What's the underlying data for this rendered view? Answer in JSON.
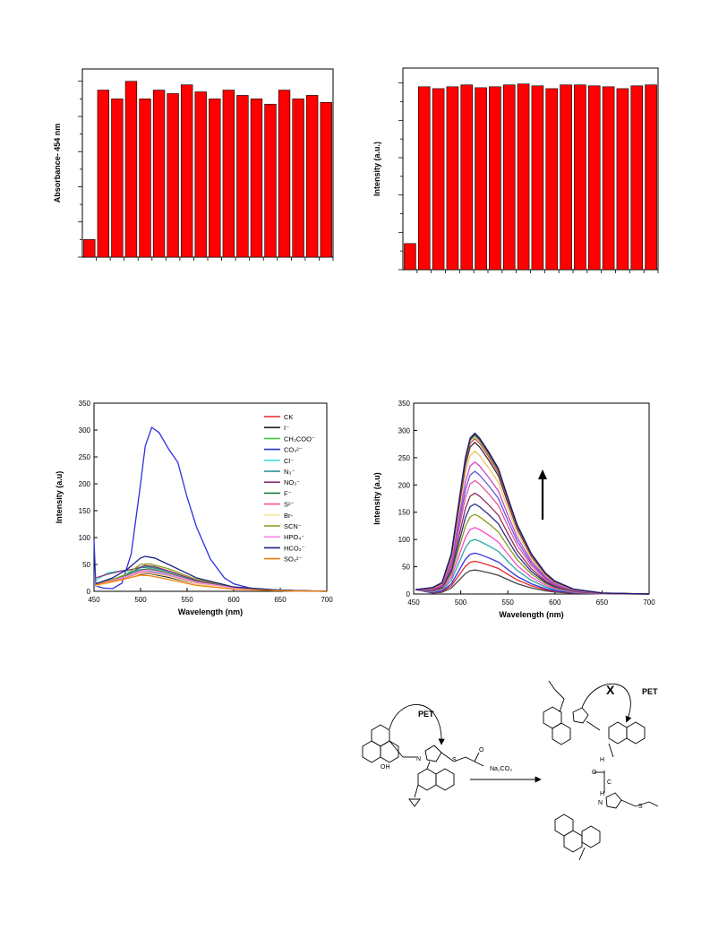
{
  "chart_data": [
    {
      "type": "bar",
      "title": "",
      "ylabel": "Absorbance- 454 nm",
      "xlabel": "",
      "ylim": [
        0,
        1.07
      ],
      "color": "#ff0000",
      "values": [
        0.1,
        0.95,
        0.9,
        1.0,
        0.9,
        0.95,
        0.93,
        0.98,
        0.94,
        0.9,
        0.95,
        0.92,
        0.9,
        0.87,
        0.95,
        0.9,
        0.92,
        0.88
      ]
    },
    {
      "type": "bar",
      "title": "",
      "ylabel": "Intensity (a.u.)",
      "xlabel": "",
      "ylim": [
        0,
        1.08
      ],
      "color": "#ff0000",
      "values": [
        0.14,
        0.98,
        0.97,
        0.98,
        0.99,
        0.975,
        0.98,
        0.99,
        0.995,
        0.985,
        0.97,
        0.99,
        0.99,
        0.985,
        0.98,
        0.97,
        0.985,
        0.99
      ]
    },
    {
      "type": "line",
      "title": "",
      "xlabel": "Wavelength (nm)",
      "ylabel": "Intensity (a.u)",
      "xlim": [
        450,
        700
      ],
      "ylim": [
        0,
        350
      ],
      "xticks": [
        "450",
        "500",
        "550",
        "600",
        "650",
        "700"
      ],
      "yticks": [
        "0",
        "50",
        "100",
        "150",
        "200",
        "250",
        "300",
        "350"
      ],
      "legend_position": "top-right",
      "series": [
        {
          "name": "CK",
          "color": "#e8262a",
          "x": [
            452,
            470,
            485,
            500,
            510,
            530,
            560,
            600,
            650,
            700
          ],
          "y": [
            12,
            20,
            28,
            38,
            40,
            32,
            18,
            6,
            2,
            0
          ]
        },
        {
          "name": "I⁻",
          "color": "#222222",
          "x": [
            452,
            470,
            485,
            500,
            510,
            530,
            560,
            600,
            650,
            700
          ],
          "y": [
            10,
            18,
            24,
            32,
            33,
            26,
            14,
            5,
            1,
            0
          ]
        },
        {
          "name": "CH₃COO⁻",
          "color": "#3cd03c",
          "x": [
            452,
            470,
            485,
            500,
            510,
            530,
            560,
            600,
            650,
            700
          ],
          "y": [
            15,
            22,
            30,
            45,
            46,
            38,
            20,
            7,
            2,
            0
          ]
        },
        {
          "name": "CO₃²⁻",
          "color": "#2f2fe0",
          "x": [
            450,
            452,
            460,
            470,
            480,
            490,
            500,
            505,
            512,
            520,
            530,
            540,
            550,
            560,
            575,
            590,
            600,
            620,
            650,
            700
          ],
          "y": [
            95,
            10,
            6,
            5,
            15,
            70,
            200,
            270,
            305,
            295,
            265,
            240,
            175,
            120,
            60,
            25,
            14,
            5,
            1,
            0
          ]
        },
        {
          "name": "Cl⁻",
          "color": "#40e0e0",
          "x": [
            452,
            465,
            480,
            490,
            500,
            510,
            530,
            560,
            600,
            650,
            700
          ],
          "y": [
            20,
            35,
            38,
            36,
            40,
            38,
            30,
            16,
            6,
            1,
            0
          ]
        },
        {
          "name": "N₃⁻",
          "color": "#1f8b8b",
          "x": [
            452,
            470,
            485,
            500,
            510,
            530,
            560,
            600,
            650,
            700
          ],
          "y": [
            14,
            20,
            30,
            44,
            45,
            37,
            20,
            7,
            2,
            0
          ]
        },
        {
          "name": "NO₃⁻",
          "color": "#8b2f7a",
          "x": [
            452,
            465,
            480,
            495,
            505,
            515,
            530,
            560,
            600,
            650,
            700
          ],
          "y": [
            25,
            32,
            38,
            42,
            48,
            46,
            38,
            20,
            7,
            2,
            0
          ]
        },
        {
          "name": "F⁻",
          "color": "#1e7b3a",
          "x": [
            452,
            470,
            485,
            500,
            510,
            530,
            560,
            600,
            650,
            700
          ],
          "y": [
            12,
            20,
            28,
            40,
            42,
            34,
            18,
            6,
            2,
            0
          ]
        },
        {
          "name": "S²⁻",
          "color": "#ff4da6",
          "x": [
            452,
            470,
            485,
            500,
            510,
            530,
            560,
            600,
            650,
            700
          ],
          "y": [
            11,
            18,
            25,
            35,
            36,
            29,
            15,
            5,
            1,
            0
          ]
        },
        {
          "name": "Br-",
          "color": "#f5e6a0",
          "x": [
            452,
            470,
            485,
            500,
            510,
            530,
            560,
            600,
            650,
            700
          ],
          "y": [
            10,
            17,
            24,
            33,
            34,
            28,
            14,
            5,
            1,
            0
          ]
        },
        {
          "name": "SCN⁻",
          "color": "#8a9a1a",
          "x": [
            452,
            470,
            485,
            500,
            510,
            530,
            560,
            600,
            650,
            700
          ],
          "y": [
            14,
            22,
            32,
            50,
            51,
            42,
            22,
            8,
            2,
            0
          ]
        },
        {
          "name": "HPO₄⁻",
          "color": "#ff88e8",
          "x": [
            452,
            470,
            485,
            500,
            510,
            530,
            560,
            600,
            650,
            700
          ],
          "y": [
            13,
            20,
            28,
            38,
            40,
            32,
            17,
            6,
            2,
            0
          ]
        },
        {
          "name": "HCO₃⁻",
          "color": "#1a237e",
          "x": [
            452,
            470,
            485,
            500,
            505,
            515,
            530,
            560,
            600,
            650,
            700
          ],
          "y": [
            14,
            25,
            40,
            62,
            65,
            62,
            50,
            25,
            8,
            2,
            0
          ]
        },
        {
          "name": "SO₄²⁻",
          "color": "#f08000",
          "x": [
            452,
            470,
            485,
            500,
            510,
            530,
            560,
            600,
            650,
            700
          ],
          "y": [
            12,
            18,
            24,
            30,
            29,
            22,
            11,
            4,
            1,
            0
          ]
        }
      ]
    },
    {
      "type": "line",
      "title": "",
      "xlabel": "Wavelength (nm)",
      "ylabel": "Intensity (a.u)",
      "xlim": [
        450,
        700
      ],
      "ylim": [
        0,
        350
      ],
      "xticks": [
        "450",
        "500",
        "550",
        "600",
        "650",
        "700"
      ],
      "yticks": [
        "0",
        "50",
        "100",
        "150",
        "200",
        "250",
        "300",
        "350"
      ],
      "arrow": "up",
      "series_peaks": [
        44,
        60,
        75,
        100,
        122,
        146,
        165,
        185,
        208,
        225,
        242,
        262,
        278,
        285,
        290,
        293,
        295
      ],
      "series_colors": [
        "#444444",
        "#e82828",
        "#2f2fe0",
        "#2aa8a8",
        "#ff44cc",
        "#8a9a1a",
        "#2a2a8a",
        "#8b2f5a",
        "#e855a0",
        "#5a5ae0",
        "#cc44cc",
        "#f0c060",
        "#333333",
        "#e04040",
        "#30b050",
        "#8b1a1a",
        "#1a1a7a"
      ]
    }
  ],
  "scheme": {
    "pet_left": "PET",
    "pet_right": "PET",
    "blocked_mark": "X",
    "reagent": "Na₂CO₃",
    "atoms": {
      "oh": "OH",
      "n": "N",
      "s": "S",
      "o": "O",
      "h": "H",
      "c": "C"
    }
  }
}
